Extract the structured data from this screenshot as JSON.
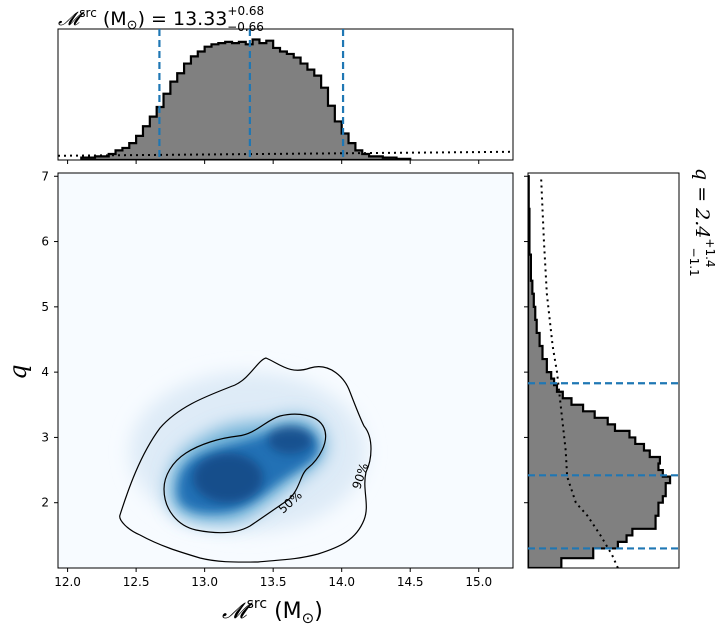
{
  "chart_data": {
    "type": "heatmap",
    "title_top": {
      "main": "𝓜",
      "sup": "src",
      "mid": " (M",
      "sun": "⊙",
      "eq": ") = 13.33",
      "plus": "+0.68",
      "minus": "−0.66"
    },
    "title_right": {
      "main": "q = 2.4",
      "plus": "+1.4",
      "minus": "−1.1"
    },
    "xlabel": {
      "main": "𝓜",
      "sup": "src",
      "unit": " (M",
      "sun": "⊙",
      "close": ")"
    },
    "ylabel": "q",
    "xlim": [
      11.93,
      15.25
    ],
    "ylim": [
      1.0,
      7.05
    ],
    "xticks": [
      "12.0",
      "12.5",
      "13.0",
      "13.5",
      "14.0",
      "14.5",
      "15.0"
    ],
    "yticks": [
      "2",
      "3",
      "4",
      "5",
      "6",
      "7"
    ],
    "contours": [
      {
        "label": "50%",
        "level": 0.5
      },
      {
        "label": "90%",
        "level": 0.9
      }
    ],
    "colormap": {
      "low": "#f7fbff",
      "high": "#08306b"
    },
    "top_marginal": {
      "quantile_lines": [
        12.67,
        13.33,
        14.01
      ],
      "histogram_bins": {
        "edges": [
          12.1,
          12.2,
          12.3,
          12.35,
          12.4,
          12.45,
          12.5,
          12.55,
          12.6,
          12.65,
          12.7,
          12.75,
          12.8,
          12.85,
          12.9,
          12.95,
          13.0,
          13.05,
          13.1,
          13.15,
          13.2,
          13.25,
          13.3,
          13.35,
          13.4,
          13.45,
          13.5,
          13.55,
          13.6,
          13.65,
          13.7,
          13.75,
          13.8,
          13.85,
          13.9,
          13.95,
          14.0,
          14.05,
          14.1,
          14.15,
          14.2,
          14.3,
          14.4,
          14.5
        ],
        "heights": [
          0.02,
          0.03,
          0.05,
          0.08,
          0.1,
          0.14,
          0.2,
          0.28,
          0.36,
          0.44,
          0.55,
          0.65,
          0.72,
          0.8,
          0.86,
          0.9,
          0.94,
          0.96,
          0.97,
          0.98,
          0.97,
          0.98,
          0.96,
          1.0,
          0.97,
          0.99,
          0.93,
          0.9,
          0.88,
          0.85,
          0.8,
          0.75,
          0.7,
          0.6,
          0.45,
          0.32,
          0.22,
          0.14,
          0.08,
          0.05,
          0.03,
          0.02,
          0.01
        ]
      },
      "prior_level": 0.035
    },
    "right_marginal": {
      "quantile_lines": [
        1.3,
        2.42,
        3.83
      ],
      "histogram_bins": {
        "edges": [
          1.0,
          1.15,
          1.3,
          1.4,
          1.5,
          1.6,
          1.7,
          1.8,
          1.9,
          2.0,
          2.1,
          2.2,
          2.3,
          2.4,
          2.5,
          2.6,
          2.7,
          2.8,
          2.9,
          3.0,
          3.1,
          3.2,
          3.3,
          3.4,
          3.5,
          3.6,
          3.7,
          3.8,
          3.9,
          4.0,
          4.2,
          4.4,
          4.6,
          4.8,
          5.0,
          5.2,
          5.4,
          5.6,
          5.8,
          6.0,
          6.5,
          7.0
        ],
        "heights": [
          0.23,
          0.45,
          0.62,
          0.68,
          0.72,
          0.88,
          0.88,
          0.9,
          0.9,
          0.93,
          0.95,
          0.95,
          0.98,
          0.93,
          0.9,
          0.91,
          0.84,
          0.8,
          0.74,
          0.7,
          0.6,
          0.55,
          0.46,
          0.38,
          0.3,
          0.24,
          0.2,
          0.18,
          0.16,
          0.13,
          0.1,
          0.08,
          0.06,
          0.05,
          0.04,
          0.03,
          0.02,
          0.02,
          0.01,
          0.01,
          0.005
        ]
      },
      "prior_points": [
        [
          1.0,
          0.62
        ],
        [
          1.2,
          0.58
        ],
        [
          1.5,
          0.5
        ],
        [
          1.8,
          0.41
        ],
        [
          2.0,
          0.33
        ],
        [
          2.4,
          0.27
        ],
        [
          2.8,
          0.26
        ],
        [
          3.2,
          0.24
        ],
        [
          3.6,
          0.22
        ],
        [
          4.0,
          0.2
        ],
        [
          4.4,
          0.17
        ],
        [
          4.8,
          0.15
        ],
        [
          5.2,
          0.13
        ],
        [
          5.6,
          0.12
        ],
        [
          6.0,
          0.11
        ],
        [
          6.5,
          0.1
        ],
        [
          7.0,
          0.09
        ]
      ]
    }
  }
}
